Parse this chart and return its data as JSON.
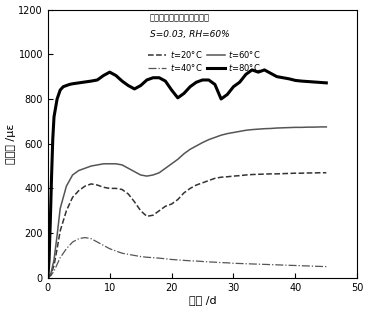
{
  "title_line1": "温度对蠕变发展规律的影响",
  "title_line2": "S=0.03, RH=60%",
  "xlabel": "龄期 /d",
  "ylabel": "蠕变度 /με",
  "xlim": [
    0,
    50
  ],
  "ylim": [
    0,
    1200
  ],
  "xticks": [
    0,
    10,
    20,
    30,
    40,
    50
  ],
  "yticks": [
    0,
    200,
    400,
    600,
    800,
    1000,
    1200
  ],
  "T20_x": [
    0,
    0.5,
    1,
    1.5,
    2,
    3,
    4,
    5,
    6,
    7,
    8,
    9,
    10,
    11,
    12,
    13,
    14,
    15,
    16,
    17,
    18,
    19,
    20,
    21,
    22,
    23,
    24,
    25,
    26,
    27,
    28,
    29,
    30,
    31,
    32,
    33,
    34,
    35,
    36,
    37,
    38,
    39,
    40,
    41,
    42,
    43,
    44,
    45
  ],
  "T20_y": [
    0,
    10,
    30,
    60,
    90,
    130,
    160,
    175,
    180,
    175,
    160,
    145,
    130,
    120,
    110,
    105,
    100,
    95,
    92,
    90,
    88,
    85,
    82,
    80,
    78,
    76,
    75,
    73,
    71,
    70,
    68,
    67,
    65,
    64,
    63,
    62,
    61,
    60,
    59,
    58,
    57,
    56,
    55,
    54,
    53,
    52,
    51,
    50
  ],
  "T40_x": [
    0,
    0.5,
    1,
    1.5,
    2,
    3,
    4,
    5,
    6,
    7,
    8,
    9,
    10,
    11,
    12,
    13,
    14,
    15,
    16,
    17,
    18,
    19,
    20,
    21,
    22,
    23,
    24,
    25,
    26,
    27,
    28,
    29,
    30,
    31,
    32,
    33,
    34,
    35,
    36,
    37,
    38,
    39,
    40,
    41,
    42,
    43,
    44,
    45
  ],
  "T40_y": [
    0,
    15,
    55,
    130,
    210,
    300,
    360,
    390,
    410,
    420,
    415,
    405,
    400,
    400,
    395,
    375,
    340,
    300,
    275,
    280,
    300,
    320,
    330,
    350,
    380,
    400,
    415,
    425,
    435,
    445,
    450,
    452,
    455,
    457,
    460,
    462,
    463,
    464,
    465,
    465,
    466,
    467,
    468,
    468,
    469,
    469,
    470,
    470
  ],
  "T60_x": [
    0,
    0.5,
    1,
    1.5,
    2,
    3,
    4,
    5,
    6,
    7,
    8,
    9,
    10,
    11,
    12,
    13,
    14,
    15,
    16,
    17,
    18,
    19,
    20,
    21,
    22,
    23,
    24,
    25,
    26,
    27,
    28,
    29,
    30,
    31,
    32,
    33,
    34,
    35,
    36,
    37,
    38,
    39,
    40,
    41,
    42,
    43,
    44,
    45
  ],
  "T60_y": [
    0,
    20,
    80,
    190,
    310,
    410,
    460,
    480,
    490,
    500,
    505,
    510,
    510,
    510,
    505,
    490,
    475,
    460,
    455,
    460,
    470,
    490,
    510,
    530,
    555,
    575,
    590,
    605,
    618,
    628,
    638,
    645,
    650,
    655,
    660,
    663,
    665,
    667,
    668,
    670,
    671,
    672,
    673,
    673,
    674,
    674,
    675,
    675
  ],
  "T80_x": [
    0,
    0.2,
    0.4,
    0.6,
    0.8,
    1,
    1.5,
    2,
    2.5,
    3,
    3.5,
    4,
    5,
    6,
    7,
    8,
    9,
    10,
    11,
    12,
    13,
    14,
    15,
    16,
    17,
    18,
    19,
    20,
    21,
    22,
    23,
    24,
    25,
    26,
    27,
    28,
    29,
    30,
    31,
    32,
    33,
    34,
    35,
    36,
    37,
    38,
    39,
    40,
    41,
    42,
    43,
    44,
    45
  ],
  "T80_y": [
    0,
    80,
    250,
    450,
    620,
    720,
    800,
    840,
    855,
    860,
    865,
    868,
    872,
    876,
    880,
    885,
    905,
    920,
    905,
    880,
    860,
    845,
    860,
    885,
    895,
    895,
    880,
    840,
    805,
    825,
    855,
    875,
    885,
    885,
    865,
    800,
    820,
    855,
    875,
    910,
    930,
    920,
    930,
    915,
    900,
    895,
    890,
    883,
    880,
    878,
    876,
    874,
    872
  ]
}
